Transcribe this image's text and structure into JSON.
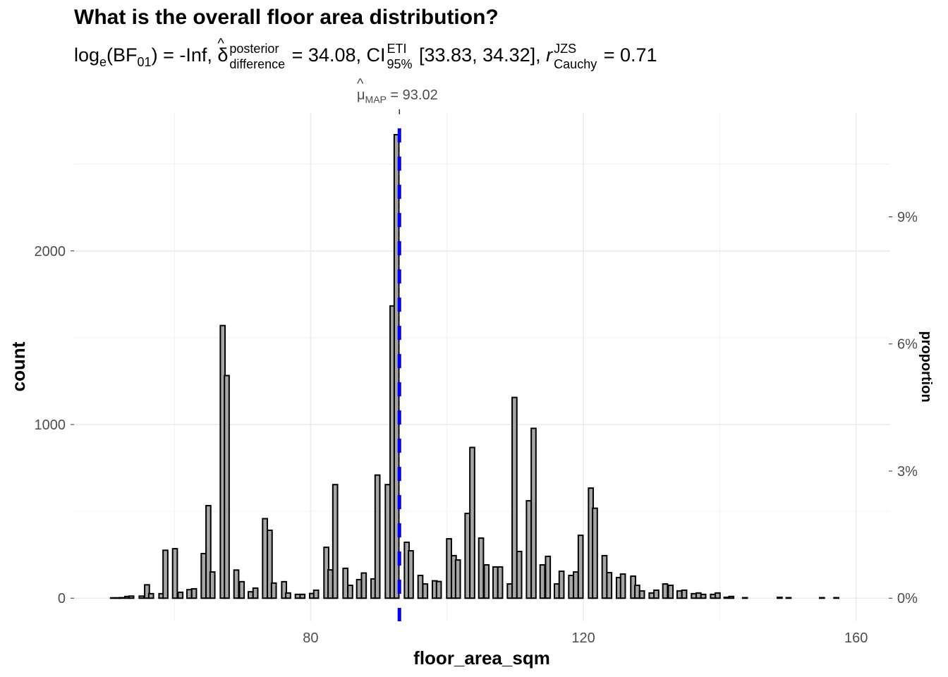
{
  "title": "What is the overall floor area distribution?",
  "subtitle": {
    "bf_lhs": "log",
    "bf_sub": "e",
    "bf_arg": "(BF",
    "bf_arg_sub": "01",
    "bf_close": ")",
    "bf_value": " = -Inf, ",
    "delta_symbol": "δ",
    "delta_sup": "posterior",
    "delta_sub": "difference",
    "delta_value": " = 34.08, CI",
    "ci_sup": "ETI",
    "ci_sub": "95%",
    "ci_value": " [33.83, 34.32], ",
    "r_symbol": "r",
    "r_sup": "JZS",
    "r_sub": "Cauchy",
    "r_value": " = 0.71"
  },
  "map_label": {
    "symbol": "μ",
    "sub": "MAP",
    "value": " = 93.02"
  },
  "colors": {
    "bar_fill": "#a6a6a6",
    "bar_stroke": "#000000",
    "centrality_line": "#0000ff",
    "grid": "#ebebeb",
    "tick_text": "#4d4d4d"
  },
  "chart_data": {
    "type": "bar",
    "title": "What is the overall floor area distribution?",
    "xlabel": "floor_area_sqm",
    "ylabel": "count",
    "y2label": "proportion",
    "xlim": [
      45.3,
      165.0
    ],
    "ylim": [
      -133,
      2795
    ],
    "binwidth": 0.69,
    "grid": true,
    "x_ticks": [
      80,
      120,
      160
    ],
    "x_tick_labels": [
      "80",
      "120",
      "160"
    ],
    "x_minor_ticks": [
      60,
      100,
      140
    ],
    "y_ticks": [
      0,
      1000,
      2000
    ],
    "y_tick_labels": [
      "0",
      "1000",
      "2000"
    ],
    "y_minor_ticks": [
      500,
      1500,
      2500
    ],
    "y2_ticks": [
      0,
      0.03,
      0.06,
      0.09
    ],
    "y2_tick_labels": [
      "0%",
      "3%",
      "6%",
      "9%"
    ],
    "total_n": 24400,
    "centrality_line": {
      "type": "MAP",
      "x": 93.02,
      "style": "dashed"
    },
    "bins": [
      [
        51.0,
        2
      ],
      [
        51.7,
        2
      ],
      [
        52.3,
        3
      ],
      [
        53.1,
        10
      ],
      [
        53.7,
        12
      ],
      [
        55.2,
        12
      ],
      [
        56.0,
        77
      ],
      [
        56.6,
        26
      ],
      [
        58.1,
        26
      ],
      [
        58.7,
        276
      ],
      [
        60.1,
        285
      ],
      [
        60.9,
        34
      ],
      [
        62.2,
        49
      ],
      [
        62.9,
        54
      ],
      [
        64.3,
        257
      ],
      [
        65.0,
        533
      ],
      [
        65.6,
        151
      ],
      [
        67.1,
        1570
      ],
      [
        67.7,
        1282
      ],
      [
        69.1,
        162
      ],
      [
        69.9,
        95
      ],
      [
        71.2,
        37
      ],
      [
        71.9,
        58
      ],
      [
        73.3,
        458
      ],
      [
        74.0,
        391
      ],
      [
        74.6,
        87
      ],
      [
        76.1,
        95
      ],
      [
        76.7,
        30
      ],
      [
        78.1,
        22
      ],
      [
        78.8,
        22
      ],
      [
        80.2,
        27
      ],
      [
        80.8,
        46
      ],
      [
        82.3,
        293
      ],
      [
        82.9,
        163
      ],
      [
        83.6,
        654
      ],
      [
        85.1,
        172
      ],
      [
        85.8,
        74
      ],
      [
        87.1,
        107
      ],
      [
        87.8,
        145
      ],
      [
        89.2,
        111
      ],
      [
        89.8,
        709
      ],
      [
        91.3,
        654
      ],
      [
        92.0,
        1683
      ],
      [
        92.6,
        2669
      ],
      [
        94.1,
        322
      ],
      [
        94.7,
        273
      ],
      [
        96.1,
        131
      ],
      [
        96.8,
        82
      ],
      [
        98.2,
        100
      ],
      [
        98.8,
        96
      ],
      [
        100.3,
        342
      ],
      [
        101.0,
        245
      ],
      [
        101.6,
        220
      ],
      [
        103.0,
        488
      ],
      [
        103.7,
        868
      ],
      [
        105.0,
        346
      ],
      [
        105.8,
        192
      ],
      [
        107.1,
        180
      ],
      [
        107.8,
        180
      ],
      [
        109.2,
        82
      ],
      [
        109.9,
        1156
      ],
      [
        110.6,
        269
      ],
      [
        112.0,
        561
      ],
      [
        112.7,
        978
      ],
      [
        114.0,
        192
      ],
      [
        114.8,
        241
      ],
      [
        116.1,
        82
      ],
      [
        116.8,
        155
      ],
      [
        118.2,
        131
      ],
      [
        118.9,
        151
      ],
      [
        119.6,
        362
      ],
      [
        121.1,
        634
      ],
      [
        121.7,
        518
      ],
      [
        123.1,
        245
      ],
      [
        123.8,
        147
      ],
      [
        125.2,
        119
      ],
      [
        125.8,
        139
      ],
      [
        127.3,
        127
      ],
      [
        127.9,
        74
      ],
      [
        128.6,
        42
      ],
      [
        130.0,
        30
      ],
      [
        130.7,
        46
      ],
      [
        132.0,
        82
      ],
      [
        132.8,
        74
      ],
      [
        134.1,
        42
      ],
      [
        134.8,
        46
      ],
      [
        136.2,
        26
      ],
      [
        136.9,
        30
      ],
      [
        137.6,
        22
      ],
      [
        139.0,
        22
      ],
      [
        139.7,
        30
      ],
      [
        141.0,
        5
      ],
      [
        141.7,
        10
      ],
      [
        143.7,
        3
      ],
      [
        148.8,
        5
      ],
      [
        150.1,
        3
      ],
      [
        155.0,
        3
      ],
      [
        157.1,
        3
      ]
    ]
  }
}
